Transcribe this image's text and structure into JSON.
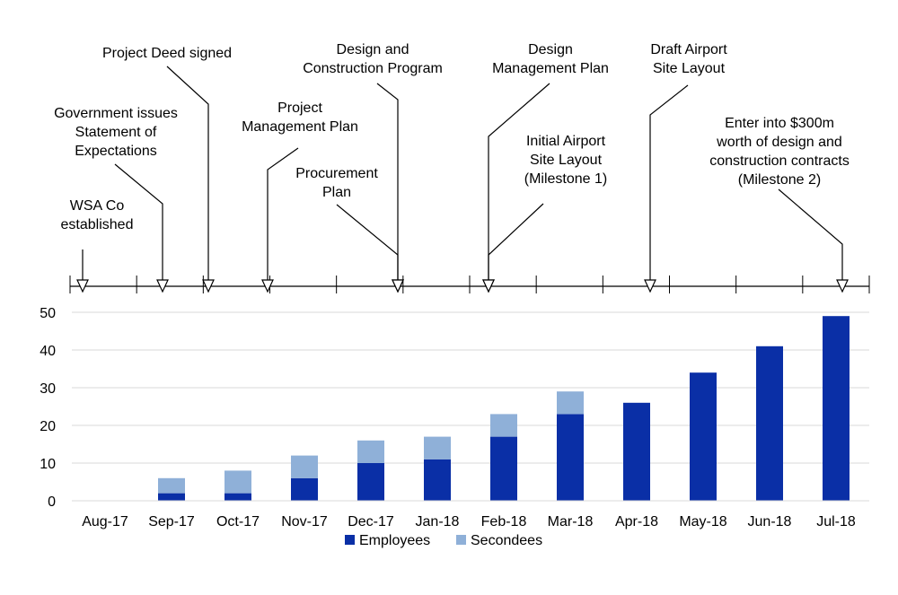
{
  "colors": {
    "employees": "#0a2fa6",
    "secondees": "#8fb0d8",
    "gridline": "#d9d9d9",
    "axis": "#000000"
  },
  "legend": [
    {
      "key": "employees",
      "label": "Employees"
    },
    {
      "key": "secondees",
      "label": "Secondees"
    }
  ],
  "timeline": {
    "events": [
      {
        "lines": [
          "WSA Co",
          "established"
        ],
        "month_index": 0.2
      },
      {
        "lines": [
          "Government issues",
          "Statement of",
          "Expectations"
        ],
        "month_index": 1.4
      },
      {
        "lines": [
          "Project Deed signed"
        ],
        "month_index": 2.1
      },
      {
        "lines": [
          "Project",
          "Management Plan"
        ],
        "month_index": 3.0
      },
      {
        "lines": [
          "Procurement",
          "Plan"
        ],
        "month_index": 5.0
      },
      {
        "lines": [
          "Design and",
          "Construction Program"
        ],
        "month_index": 5.0
      },
      {
        "lines": [
          "Design",
          "Management Plan"
        ],
        "month_index": 6.4
      },
      {
        "lines": [
          "Initial Airport",
          "Site Layout",
          "(Milestone 1)"
        ],
        "month_index": 6.4
      },
      {
        "lines": [
          "Draft Airport",
          "Site Layout"
        ],
        "month_index": 8.9
      },
      {
        "lines": [
          "Enter into $300m",
          "worth of design and",
          "construction contracts",
          "(Milestone 2)"
        ],
        "month_index": 11.9
      }
    ]
  },
  "chart_data": {
    "type": "bar",
    "stacked": true,
    "categories": [
      "Aug-17",
      "Sep-17",
      "Oct-17",
      "Nov-17",
      "Dec-17",
      "Jan-18",
      "Feb-18",
      "Mar-18",
      "Apr-18",
      "May-18",
      "Jun-18",
      "Jul-18"
    ],
    "series": [
      {
        "name": "Employees",
        "key": "employees",
        "values": [
          0,
          2,
          2,
          6,
          10,
          11,
          17,
          23,
          26,
          34,
          41,
          49
        ]
      },
      {
        "name": "Secondees",
        "key": "secondees",
        "values": [
          0,
          4,
          6,
          6,
          6,
          6,
          6,
          6,
          0,
          0,
          0,
          0
        ]
      }
    ],
    "ylim": [
      0,
      50
    ],
    "yticks": [
      0,
      10,
      20,
      30,
      40,
      50
    ],
    "grid": true,
    "legend_position": "bottom"
  }
}
